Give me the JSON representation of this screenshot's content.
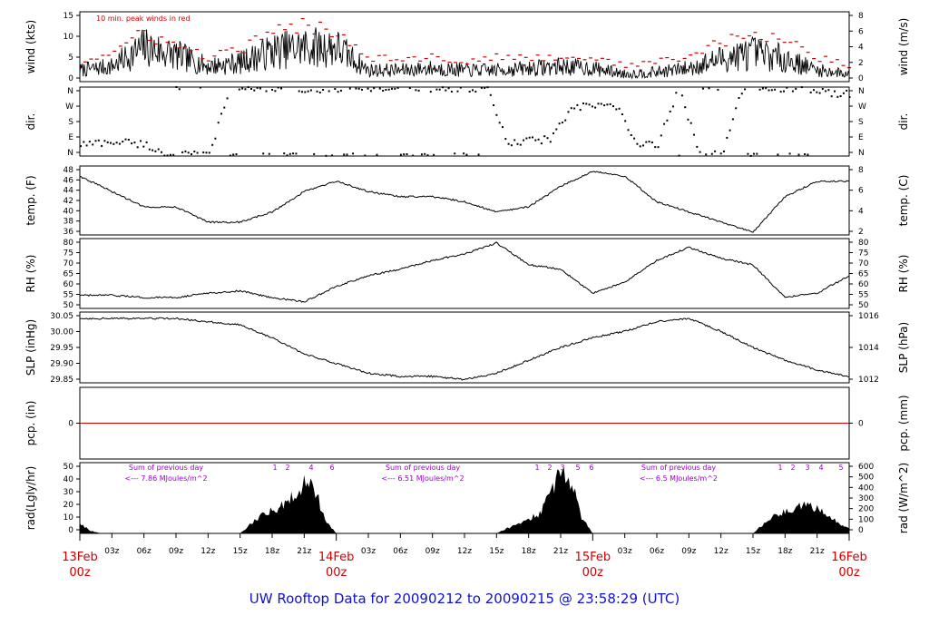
{
  "chart_data": {
    "title": "UW Rooftop Data for 20090212  to  20090215 @ 23:58:29  (UTC)",
    "x_axis": {
      "hour_ticks": [
        "03z",
        "06z",
        "09z",
        "12z",
        "15z",
        "18z",
        "21z",
        "03z",
        "06z",
        "09z",
        "12z",
        "15z",
        "18z",
        "21z",
        "03z",
        "06z",
        "09z",
        "12z",
        "15z",
        "18z",
        "21z"
      ],
      "day_labels": [
        {
          "date": "13Feb",
          "time": "00z"
        },
        {
          "date": "14Feb",
          "time": "00z"
        },
        {
          "date": "15Feb",
          "time": "00z"
        },
        {
          "date": "16Feb",
          "time": "00z"
        }
      ]
    },
    "panels": [
      {
        "id": "wind",
        "type": "line",
        "ylabel_left": "wind (kts)",
        "ylabel_right": "wind (m/s)",
        "ylim": [
          0,
          16.5
        ],
        "left_ticks": [
          "0",
          "5",
          "10",
          "15"
        ],
        "right_ticks": [
          "0",
          "2",
          "4",
          "6",
          "8"
        ],
        "annotation": "10 min. peak winds in red",
        "series": [
          {
            "kind": "mean",
            "color": "#000000",
            "x": [
              0,
              3,
              6,
              9,
              12,
              15,
              18,
              21,
              24,
              27,
              30,
              33,
              36,
              39,
              42,
              45,
              48,
              51,
              54,
              57,
              60,
              63,
              66,
              69,
              72
            ],
            "y": [
              3,
              4,
              9,
              7,
              4,
              5,
              8,
              9,
              9,
              3,
              3,
              3.5,
              3,
              3,
              3.5,
              4,
              3.5,
              2,
              2.5,
              3.5,
              6,
              7.5,
              6,
              3,
              2
            ]
          },
          {
            "kind": "peak",
            "color": "#d00000",
            "x": [
              0,
              3,
              6,
              9,
              12,
              15,
              18,
              21,
              24,
              27,
              30,
              33,
              36,
              39,
              42,
              45,
              48,
              51,
              54,
              57,
              60,
              63,
              66,
              69,
              72
            ],
            "y": [
              5,
              7,
              12,
              9,
              6,
              8,
              12,
              14,
              13,
              6,
              6,
              6,
              5,
              6,
              6,
              6,
              6,
              4,
              5,
              6,
              10,
              11,
              11,
              6,
              4
            ]
          }
        ]
      },
      {
        "id": "dir",
        "type": "scatter",
        "ylabel_left": "dir.",
        "ylabel_right": "dir.",
        "ylim": [
          0,
          360
        ],
        "left_ticks": [
          "N",
          "E",
          "S",
          "W",
          "N"
        ],
        "right_ticks": [
          "N",
          "E",
          "S",
          "W",
          "N"
        ],
        "series": [
          {
            "name": "direction",
            "color": "#000000",
            "x": [
              0,
              2,
              4,
              6,
              8,
              10,
              12,
              14,
              16,
              18,
              20,
              22,
              24,
              26,
              28,
              30,
              32,
              34,
              36,
              38,
              40,
              42,
              44,
              46,
              48,
              50,
              52,
              54,
              56,
              58,
              60,
              62,
              64,
              66,
              68,
              70,
              72
            ],
            "y": [
              60,
              70,
              75,
              60,
              10,
              5,
              5,
              355,
              355,
              355,
              355,
              350,
              350,
              355,
              355,
              355,
              355,
              355,
              355,
              355,
              60,
              80,
              90,
              250,
              260,
              270,
              60,
              60,
              355,
              10,
              5,
              355,
              355,
              355,
              350,
              330,
              320
            ]
          }
        ]
      },
      {
        "id": "temp",
        "type": "line",
        "ylabel_left": "temp. (F)",
        "ylabel_right": "temp. (C)",
        "ylim": [
          35.5,
          49
        ],
        "left_ticks": [
          "36",
          "38",
          "40",
          "42",
          "44",
          "46",
          "48"
        ],
        "right_ticks": [
          "2",
          "4",
          "6",
          "8"
        ],
        "series": [
          {
            "name": "temperature",
            "color": "#000000",
            "x": [
              0,
              3,
              6,
              9,
              12,
              15,
              18,
              21,
              24,
              27,
              30,
              33,
              36,
              39,
              42,
              45,
              48,
              51,
              54,
              57,
              60,
              63,
              66,
              69,
              72
            ],
            "y": [
              47,
              44,
              41,
              41,
              38,
              38,
              40,
              44,
              46,
              44,
              43,
              43,
              42,
              40,
              41,
              45,
              48,
              47,
              42,
              40,
              38,
              36,
              43,
              46,
              46
            ]
          }
        ]
      },
      {
        "id": "rh",
        "type": "line",
        "ylabel_left": "RH (%)",
        "ylabel_right": "RH (%)",
        "ylim": [
          50,
          82
        ],
        "left_ticks": [
          "50",
          "55",
          "60",
          "65",
          "70",
          "75",
          "80"
        ],
        "right_ticks": [
          "50",
          "55",
          "60",
          "65",
          "70",
          "75",
          "80"
        ],
        "series": [
          {
            "name": "relative humidity",
            "color": "#000000",
            "x": [
              0,
              3,
              6,
              9,
              12,
              15,
              18,
              21,
              24,
              27,
              30,
              33,
              36,
              39,
              42,
              45,
              48,
              51,
              54,
              57,
              60,
              63,
              66,
              69,
              72
            ],
            "y": [
              56,
              56,
              55,
              55,
              57,
              58,
              55,
              53,
              60,
              65,
              68,
              72,
              75,
              80,
              70,
              68,
              57,
              62,
              72,
              78,
              73,
              70,
              55,
              57,
              65
            ]
          }
        ]
      },
      {
        "id": "slp",
        "type": "line",
        "ylabel_left": "SLP (inHg)",
        "ylabel_right": "SLP (hPa)",
        "ylim": [
          29.83,
          30.05
        ],
        "left_ticks": [
          "29.85",
          "29.90",
          "29.95",
          "30.00",
          "30.05"
        ],
        "right_ticks": [
          "1012",
          "1014",
          "1016"
        ],
        "series": [
          {
            "name": "sea level pressure",
            "color": "#000000",
            "x": [
              0,
              3,
              6,
              9,
              12,
              15,
              18,
              21,
              24,
              27,
              30,
              33,
              36,
              39,
              42,
              45,
              48,
              51,
              54,
              57,
              60,
              63,
              66,
              69,
              72
            ],
            "y": [
              30.03,
              30.03,
              30.03,
              30.03,
              30.02,
              30.01,
              29.97,
              29.92,
              29.89,
              29.86,
              29.85,
              29.85,
              29.84,
              29.86,
              29.9,
              29.94,
              29.97,
              29.99,
              30.02,
              30.03,
              29.99,
              29.94,
              29.9,
              29.87,
              29.85
            ]
          }
        ]
      },
      {
        "id": "pcp",
        "type": "line",
        "ylabel_left": "pcp. (in)",
        "ylabel_right": "pcp. (mm)",
        "ylim": [
          -1,
          1
        ],
        "left_ticks": [
          "0"
        ],
        "right_ticks": [
          "0"
        ],
        "series": [
          {
            "name": "precipitation",
            "color": "#d00000",
            "x": [
              0,
              72
            ],
            "y": [
              0,
              0
            ]
          }
        ]
      },
      {
        "id": "rad",
        "type": "area",
        "ylabel_left": "rad(Lgly/hr)",
        "ylabel_right": "rad (W/m^2)",
        "ylim": [
          0,
          52
        ],
        "left_ticks": [
          "0",
          "10",
          "20",
          "30",
          "40",
          "50"
        ],
        "right_ticks": [
          "0",
          "100",
          "200",
          "300",
          "400",
          "500",
          "600"
        ],
        "annotations": [
          {
            "line1": "Sum of previous day",
            "line2": "<--- 7.86 MJoules/m^2"
          },
          {
            "line1": "Sum of previous day",
            "line2": "<--- 6.51 MJoules/m^2"
          },
          {
            "line1": "Sum of previous day",
            "line2": "<--- 6.5 MJoules/m^2"
          }
        ],
        "hour_markers": [
          {
            "labels": [
              "1",
              "2",
              "4",
              "6"
            ]
          },
          {
            "labels": [
              "1",
              "2",
              "3",
              "5",
              "6"
            ]
          },
          {
            "labels": [
              "1",
              "2",
              "3",
              "4",
              "5"
            ]
          }
        ],
        "series": [
          {
            "name": "radiation",
            "color": "#000000",
            "x": [
              0,
              1,
              2,
              15,
              17,
              19,
              20,
              21,
              22,
              23,
              24,
              25,
              26,
              39,
              41,
              43,
              44,
              45,
              46,
              47,
              48,
              49,
              50,
              63,
              65,
              67,
              68,
              69,
              70,
              71,
              72
            ],
            "y": [
              8,
              2,
              0,
              0,
              15,
              22,
              30,
              40,
              35,
              10,
              0,
              0,
              0,
              0,
              8,
              15,
              30,
              52,
              40,
              12,
              0,
              0,
              0,
              0,
              15,
              20,
              22,
              20,
              15,
              8,
              5
            ]
          }
        ]
      }
    ]
  }
}
